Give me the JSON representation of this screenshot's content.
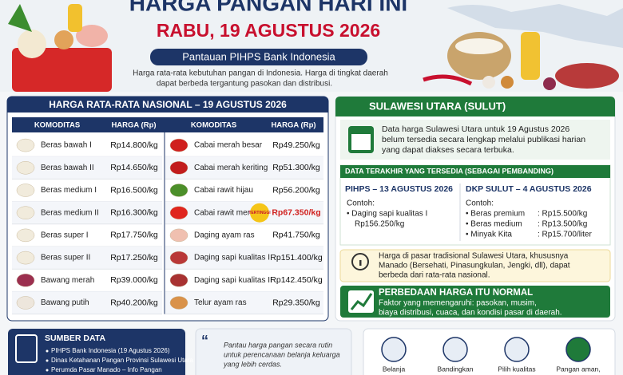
{
  "header": {
    "title": "HARGA PANGAN HARI INI",
    "date": "RABU, 19 AGUSTUS 2026",
    "subtitle": "Pantauan PIHPS Bank Indonesia",
    "description": [
      "Harga rata-rata kebutuhan pangan di Indonesia. Harga di tingkat daerah",
      "dapat berbeda tergantung pasokan dan distribusi."
    ]
  },
  "national": {
    "title": "HARGA RATA-RATA NASIONAL – 19 AGUSTUS 2026",
    "columns": [
      "KOMODITAS",
      "HARGA (Rp)",
      "KOMODITAS",
      "HARGA (Rp)"
    ],
    "left_rows": [
      {
        "name": "Beras bawah I",
        "price": "Rp14.800/kg"
      },
      {
        "name": "Beras bawah II",
        "price": "Rp14.650/kg"
      },
      {
        "name": "Beras medium I",
        "price": "Rp16.500/kg"
      },
      {
        "name": "Beras medium II",
        "price": "Rp16.300/kg"
      },
      {
        "name": "Beras super I",
        "price": "Rp17.750/kg"
      },
      {
        "name": "Beras super II",
        "price": "Rp17.250/kg"
      },
      {
        "name": "Bawang merah",
        "price": "Rp39.000/kg"
      },
      {
        "name": "Bawang putih",
        "price": "Rp40.200/kg"
      }
    ],
    "right_rows": [
      {
        "name": "Cabai merah besar",
        "price": "Rp49.250/kg"
      },
      {
        "name": "Cabai merah keriting",
        "price": "Rp51.300/kg"
      },
      {
        "name": "Cabai rawit hijau",
        "price": "Rp56.200/kg"
      },
      {
        "name": "Cabai rawit merah",
        "price": "Rp67.350/kg",
        "badge": "TERTINGGI"
      },
      {
        "name": "Daging ayam ras",
        "price": "Rp41.750/kg"
      },
      {
        "name": "Daging sapi kualitas I",
        "price": "Rp151.400/kg"
      },
      {
        "name": "Daging sapi kualitas II",
        "price": "Rp142.450/kg"
      },
      {
        "name": "Telur ayam ras",
        "price": "Rp29.350/kg"
      }
    ]
  },
  "sulut": {
    "title": "SULAWESI UTARA (SULUT)",
    "info": [
      "Data harga Sulawesi Utara untuk 19 Agustus 2026",
      "belum tersedia secara lengkap melalui publikasi harian",
      "yang dapat diakses secara terbuka."
    ],
    "comparison_title": "DATA TERAKHIR YANG TERSEDIA (SEBAGAI PEMBANDING)",
    "pihps": {
      "title": "PIHPS – 13 AGUSTUS 2026",
      "example_label": "Contoh:",
      "items": [
        "• Daging sapi kualitas I",
        "Rp156.250/kg"
      ]
    },
    "dkp": {
      "title": "DKP SULUT – 4 AGUSTUS 2026",
      "example_label": "Contoh:",
      "items": [
        {
          "name": "• Beras premium",
          "price": ": Rp15.500/kg"
        },
        {
          "name": "• Beras medium",
          "price": ": Rp13.500/kg"
        },
        {
          "name": "• Minyak Kita",
          "price": ": Rp15.700/liter"
        }
      ]
    },
    "note": [
      "Harga di pasar tradisional Sulawesi Utara, khususnya",
      "Manado (Bersehati, Pinasungkulan, Jengki, dll), dapat",
      "berbeda dari rata-rata nasional."
    ],
    "normal": {
      "title": "PERBEDAAN HARGA ITU NORMAL",
      "text": [
        "Faktor yang memengaruhi: pasokan, musim,",
        "biaya distribusi, cuaca, dan kondisi pasar di daerah."
      ]
    }
  },
  "sources": {
    "title": "SUMBER DATA",
    "items": [
      "PIHPS Bank Indonesia (19 Agustus 2026)",
      "Dinas Ketahanan Pangan Provinsi Sulawesi Utara",
      "Perumda Pasar Manado – Info Pangan"
    ]
  },
  "quote": [
    "Pantau harga pangan secara rutin",
    "untuk perencanaan belanja keluarga",
    "yang lebih cerdas."
  ],
  "tips": [
    "Belanja",
    "Bandingkan",
    "Pilih kualitas",
    "Pangan aman,"
  ]
}
